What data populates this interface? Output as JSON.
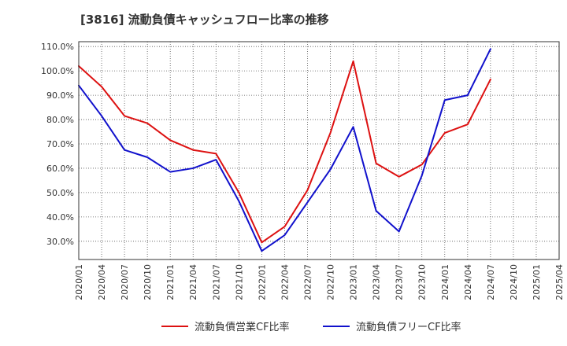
{
  "chart_data": {
    "type": "line",
    "title": "[3816]  流動負債キャッシュフロー比率の推移",
    "x": [
      "2020/01",
      "2020/04",
      "2020/07",
      "2020/10",
      "2021/01",
      "2021/04",
      "2021/07",
      "2021/10",
      "2022/01",
      "2022/04",
      "2022/07",
      "2022/10",
      "2023/01",
      "2023/04",
      "2023/07",
      "2023/10",
      "2024/01",
      "2024/04",
      "2024/07",
      "2024/10",
      "2025/01",
      "2025/04"
    ],
    "y_ticks": [
      "30.0%",
      "40.0%",
      "50.0%",
      "60.0%",
      "70.0%",
      "80.0%",
      "90.0%",
      "100.0%",
      "110.0%"
    ],
    "y_tick_values": [
      30,
      40,
      50,
      60,
      70,
      80,
      90,
      100,
      110
    ],
    "ylim": [
      22.5,
      112
    ],
    "grid": true,
    "legend_position": "bottom",
    "series": [
      {
        "name": "流動負債営業CF比率",
        "color": "#dd1111",
        "values": [
          102.0,
          93.5,
          81.5,
          78.5,
          71.5,
          67.5,
          66.0,
          50.0,
          29.5,
          36.0,
          51.0,
          74.5,
          104.0,
          62.0,
          56.5,
          61.5,
          74.5,
          78.0,
          96.5,
          null,
          null,
          null
        ]
      },
      {
        "name": "流動負債フリーCF比率",
        "color": "#1111cc",
        "values": [
          94.0,
          81.5,
          67.5,
          64.5,
          58.5,
          60.0,
          63.5,
          46.5,
          26.0,
          32.5,
          46.0,
          59.5,
          77.0,
          42.5,
          34.0,
          57.0,
          88.0,
          90.0,
          109.0,
          null,
          null,
          null
        ]
      }
    ]
  }
}
